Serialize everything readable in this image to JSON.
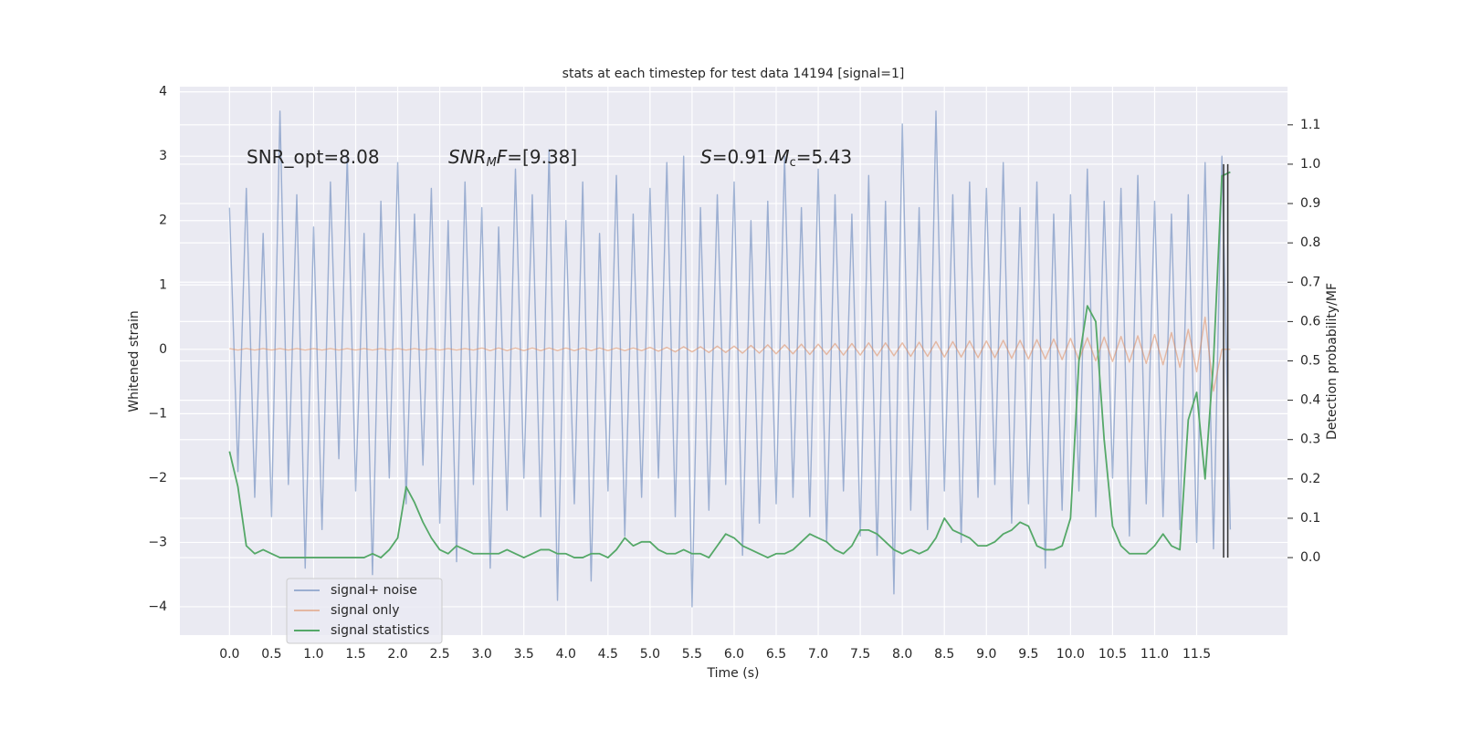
{
  "chart_data": {
    "type": "line",
    "title": "stats at each timestep for test data 14194 [signal=1]",
    "xlabel": "Time (s)",
    "ylabel": "Whitened strain",
    "y2label": "Detection probability/MF",
    "xlim": [
      -0.59,
      12.58
    ],
    "ylim": [
      -4.44,
      4.08
    ],
    "y2lim": [
      -0.197,
      1.197
    ],
    "grid": true,
    "legend": "lower left",
    "xticks": [
      {
        "value": 0,
        "label": "0.0"
      },
      {
        "value": 0.5,
        "label": "0.5"
      },
      {
        "value": 1,
        "label": "1.0"
      },
      {
        "value": 1.5,
        "label": "1.5"
      },
      {
        "value": 2,
        "label": "2.0"
      },
      {
        "value": 2.5,
        "label": "2.5"
      },
      {
        "value": 3,
        "label": "3.0"
      },
      {
        "value": 3.5,
        "label": "3.5"
      },
      {
        "value": 4,
        "label": "4.0"
      },
      {
        "value": 4.5,
        "label": "4.5"
      },
      {
        "value": 5,
        "label": "5.0"
      },
      {
        "value": 5.5,
        "label": "5.5"
      },
      {
        "value": 6,
        "label": "6.0"
      },
      {
        "value": 6.5,
        "label": "6.5"
      },
      {
        "value": 7,
        "label": "7.0"
      },
      {
        "value": 7.5,
        "label": "7.5"
      },
      {
        "value": 8,
        "label": "8.0"
      },
      {
        "value": 8.5,
        "label": "8.5"
      },
      {
        "value": 9,
        "label": "9.0"
      },
      {
        "value": 9.5,
        "label": "9.5"
      },
      {
        "value": 10,
        "label": "10.0"
      },
      {
        "value": 10.5,
        "label": "10.5"
      },
      {
        "value": 11,
        "label": "11.0"
      },
      {
        "value": 11.5,
        "label": "11.5"
      }
    ],
    "yticks": [
      {
        "value": -4,
        "label": "−4"
      },
      {
        "value": -3,
        "label": "−3"
      },
      {
        "value": -2,
        "label": "−2"
      },
      {
        "value": -1,
        "label": "−1"
      },
      0,
      1,
      2,
      3,
      4
    ],
    "y2ticks": [
      {
        "value": 0,
        "label": "0.0"
      },
      {
        "value": 0.1,
        "label": "0.1"
      },
      {
        "value": 0.2,
        "label": "0.2"
      },
      {
        "value": 0.3,
        "label": "0.3"
      },
      {
        "value": 0.4,
        "label": "0.4"
      },
      {
        "value": 0.5,
        "label": "0.5"
      },
      {
        "value": 0.6,
        "label": "0.6"
      },
      {
        "value": 0.7,
        "label": "0.7"
      },
      {
        "value": 0.8,
        "label": "0.8"
      },
      {
        "value": 0.9,
        "label": "0.9"
      },
      {
        "value": 1,
        "label": "1.0"
      },
      {
        "value": 1.1,
        "label": "1.1"
      }
    ],
    "annotations": [
      [
        "SNR_opt=8.08"
      ],
      [
        "SNR",
        "M",
        "F",
        "=[9.38]"
      ],
      [
        "S",
        "=0.91   ",
        "M",
        "c",
        "=5.43"
      ]
    ],
    "vlines": [
      11.82,
      11.87
    ],
    "vline_span": [
      0,
      1.0
    ],
    "series": [
      {
        "name": "signal+ noise",
        "color": "#4c72b0",
        "alpha": 0.5,
        "axis": "y",
        "x": [
          0,
          0.1,
          0.2,
          0.3,
          0.4,
          0.5,
          0.6,
          0.7,
          0.8,
          0.9,
          1,
          1.1,
          1.2,
          1.3,
          1.4,
          1.5,
          1.6,
          1.7,
          1.8,
          1.9,
          2,
          2.1,
          2.2,
          2.3,
          2.4,
          2.5,
          2.6,
          2.7,
          2.8,
          2.9,
          3,
          3.1,
          3.2,
          3.3,
          3.4,
          3.5,
          3.6,
          3.7,
          3.8,
          3.9,
          4,
          4.1,
          4.2,
          4.3,
          4.4,
          4.5,
          4.6,
          4.7,
          4.8,
          4.9,
          5,
          5.1,
          5.2,
          5.3,
          5.4,
          5.5,
          5.6,
          5.7,
          5.8,
          5.9,
          6,
          6.1,
          6.2,
          6.3,
          6.4,
          6.5,
          6.6,
          6.7,
          6.8,
          6.9,
          7,
          7.1,
          7.2,
          7.3,
          7.4,
          7.5,
          7.6,
          7.7,
          7.8,
          7.9,
          8,
          8.1,
          8.2,
          8.3,
          8.4,
          8.5,
          8.6,
          8.7,
          8.8,
          8.9,
          9,
          9.1,
          9.2,
          9.3,
          9.4,
          9.5,
          9.6,
          9.7,
          9.8,
          9.9,
          10,
          10.1,
          10.2,
          10.3,
          10.4,
          10.5,
          10.6,
          10.7,
          10.8,
          10.9,
          11,
          11.1,
          11.2,
          11.3,
          11.4,
          11.5,
          11.6,
          11.7,
          11.8,
          11.9
        ],
        "values": [
          2.2,
          -1.9,
          2.5,
          -2.3,
          1.8,
          -2.6,
          3.7,
          -2.1,
          2.4,
          -3.4,
          1.9,
          -2.8,
          2.6,
          -1.7,
          3.0,
          -2.2,
          1.8,
          -3.5,
          2.3,
          -2.0,
          2.9,
          -2.4,
          2.1,
          -1.8,
          2.5,
          -2.7,
          2.0,
          -3.3,
          2.6,
          -2.1,
          2.2,
          -3.4,
          1.9,
          -2.5,
          2.8,
          -2.0,
          2.4,
          -2.6,
          3.1,
          -3.9,
          2.0,
          -2.4,
          2.6,
          -3.6,
          1.8,
          -2.2,
          2.7,
          -2.9,
          2.1,
          -2.3,
          2.5,
          -2.0,
          2.9,
          -2.6,
          3.0,
          -4.0,
          2.2,
          -2.5,
          2.4,
          -2.1,
          2.6,
          -3.2,
          2.0,
          -2.7,
          2.3,
          -2.4,
          3.0,
          -2.3,
          2.2,
          -2.6,
          2.8,
          -3.0,
          2.4,
          -2.2,
          2.1,
          -2.9,
          2.7,
          -3.2,
          2.3,
          -3.8,
          3.5,
          -2.5,
          2.2,
          -2.8,
          3.7,
          -2.2,
          2.4,
          -3.0,
          2.6,
          -2.3,
          2.5,
          -2.1,
          2.9,
          -2.7,
          2.2,
          -2.4,
          2.6,
          -3.4,
          2.1,
          -2.5,
          2.4,
          -2.2,
          2.8,
          -2.6,
          2.3,
          -2.0,
          2.5,
          -2.9,
          2.7,
          -2.4,
          2.3,
          -2.6,
          2.1,
          -2.8,
          2.4,
          -3.0,
          2.9,
          -3.1,
          3.0,
          -2.8
        ]
      },
      {
        "name": "signal only",
        "color": "#dd8452",
        "alpha": 0.5,
        "axis": "y",
        "x": [
          0,
          0.1,
          0.2,
          0.3,
          0.4,
          0.5,
          0.6,
          0.7,
          0.8,
          0.9,
          1,
          1.1,
          1.2,
          1.3,
          1.4,
          1.5,
          1.6,
          1.7,
          1.8,
          1.9,
          2,
          2.1,
          2.2,
          2.3,
          2.4,
          2.5,
          2.6,
          2.7,
          2.8,
          2.9,
          3,
          3.1,
          3.2,
          3.3,
          3.4,
          3.5,
          3.6,
          3.7,
          3.8,
          3.9,
          4,
          4.1,
          4.2,
          4.3,
          4.4,
          4.5,
          4.6,
          4.7,
          4.8,
          4.9,
          5,
          5.1,
          5.2,
          5.3,
          5.4,
          5.5,
          5.6,
          5.7,
          5.8,
          5.9,
          6,
          6.1,
          6.2,
          6.3,
          6.4,
          6.5,
          6.6,
          6.7,
          6.8,
          6.9,
          7,
          7.1,
          7.2,
          7.3,
          7.4,
          7.5,
          7.6,
          7.7,
          7.8,
          7.9,
          8,
          8.1,
          8.2,
          8.3,
          8.4,
          8.5,
          8.6,
          8.7,
          8.8,
          8.9,
          9,
          9.1,
          9.2,
          9.3,
          9.4,
          9.5,
          9.6,
          9.7,
          9.8,
          9.9,
          10,
          10.1,
          10.2,
          10.3,
          10.4,
          10.5,
          10.6,
          10.7,
          10.8,
          10.9,
          11,
          11.1,
          11.2,
          11.3,
          11.4,
          11.5,
          11.6,
          11.7,
          11.8,
          11.9
        ],
        "values": [
          0.01,
          -0.01,
          0.01,
          -0.01,
          0.01,
          -0.01,
          0.01,
          -0.01,
          0.01,
          -0.01,
          0.01,
          -0.01,
          0.01,
          -0.01,
          0.01,
          -0.01,
          0.01,
          -0.01,
          0.01,
          -0.01,
          0.01,
          -0.01,
          0.01,
          -0.01,
          0.01,
          -0.01,
          0.01,
          -0.01,
          0.01,
          -0.01,
          0.02,
          -0.02,
          0.02,
          -0.02,
          0.02,
          -0.02,
          0.02,
          -0.02,
          0.02,
          -0.02,
          0.02,
          -0.02,
          0.02,
          -0.02,
          0.02,
          -0.02,
          0.02,
          -0.02,
          0.02,
          -0.02,
          0.03,
          -0.03,
          0.03,
          -0.04,
          0.04,
          -0.04,
          0.04,
          -0.05,
          0.05,
          -0.05,
          0.05,
          -0.06,
          0.06,
          -0.06,
          0.07,
          -0.07,
          0.07,
          -0.07,
          0.08,
          -0.08,
          0.08,
          -0.08,
          0.09,
          -0.09,
          0.09,
          -0.09,
          0.1,
          -0.1,
          0.1,
          -0.1,
          0.1,
          -0.11,
          0.11,
          -0.11,
          0.12,
          -0.12,
          0.12,
          -0.12,
          0.13,
          -0.13,
          0.13,
          -0.13,
          0.14,
          -0.14,
          0.14,
          -0.15,
          0.15,
          -0.15,
          0.16,
          -0.16,
          0.17,
          -0.17,
          0.18,
          -0.18,
          0.19,
          -0.19,
          0.2,
          -0.2,
          0.21,
          -0.22,
          0.23,
          -0.24,
          0.26,
          -0.28,
          0.31,
          -0.35,
          0.5,
          -0.65,
          0,
          0
        ]
      },
      {
        "name": "signal statistics",
        "color": "#55a868",
        "alpha": 1,
        "axis": "y2",
        "x": [
          0,
          0.1,
          0.2,
          0.3,
          0.4,
          0.5,
          0.6,
          0.7,
          0.8,
          0.9,
          1,
          1.1,
          1.2,
          1.3,
          1.4,
          1.5,
          1.6,
          1.7,
          1.8,
          1.9,
          2,
          2.1,
          2.2,
          2.3,
          2.4,
          2.5,
          2.6,
          2.7,
          2.8,
          2.9,
          3,
          3.1,
          3.2,
          3.3,
          3.4,
          3.5,
          3.6,
          3.7,
          3.8,
          3.9,
          4,
          4.1,
          4.2,
          4.3,
          4.4,
          4.5,
          4.6,
          4.7,
          4.8,
          4.9,
          5,
          5.1,
          5.2,
          5.3,
          5.4,
          5.5,
          5.6,
          5.7,
          5.8,
          5.9,
          6,
          6.1,
          6.2,
          6.3,
          6.4,
          6.5,
          6.6,
          6.7,
          6.8,
          6.9,
          7,
          7.1,
          7.2,
          7.3,
          7.4,
          7.5,
          7.6,
          7.7,
          7.8,
          7.9,
          8,
          8.1,
          8.2,
          8.3,
          8.4,
          8.5,
          8.6,
          8.7,
          8.8,
          8.9,
          9,
          9.1,
          9.2,
          9.3,
          9.4,
          9.5,
          9.6,
          9.7,
          9.8,
          9.9,
          10,
          10.1,
          10.2,
          10.3,
          10.4,
          10.5,
          10.6,
          10.7,
          10.8,
          10.9,
          11,
          11.1,
          11.2,
          11.3,
          11.4,
          11.5,
          11.6,
          11.7,
          11.8,
          11.9
        ],
        "values": [
          0.27,
          0.18,
          0.03,
          0.01,
          0.02,
          0.01,
          0,
          0,
          0,
          0,
          0,
          0,
          0,
          0,
          0,
          0,
          0,
          0.01,
          0,
          0.02,
          0.05,
          0.18,
          0.14,
          0.09,
          0.05,
          0.02,
          0.01,
          0.03,
          0.02,
          0.01,
          0.01,
          0.01,
          0.01,
          0.02,
          0.01,
          0,
          0.01,
          0.02,
          0.02,
          0.01,
          0.01,
          0,
          0,
          0.01,
          0.01,
          0,
          0.02,
          0.05,
          0.03,
          0.04,
          0.04,
          0.02,
          0.01,
          0.01,
          0.02,
          0.01,
          0.01,
          0,
          0.03,
          0.06,
          0.05,
          0.03,
          0.02,
          0.01,
          0,
          0.01,
          0.01,
          0.02,
          0.04,
          0.06,
          0.05,
          0.04,
          0.02,
          0.01,
          0.03,
          0.07,
          0.07,
          0.06,
          0.04,
          0.02,
          0.01,
          0.02,
          0.01,
          0.02,
          0.05,
          0.1,
          0.07,
          0.06,
          0.05,
          0.03,
          0.03,
          0.04,
          0.06,
          0.07,
          0.09,
          0.08,
          0.03,
          0.02,
          0.02,
          0.03,
          0.1,
          0.5,
          0.64,
          0.6,
          0.3,
          0.08,
          0.03,
          0.01,
          0.01,
          0.01,
          0.03,
          0.06,
          0.03,
          0.02,
          0.35,
          0.42,
          0.2,
          0.5,
          0.97,
          0.98
        ]
      }
    ]
  }
}
